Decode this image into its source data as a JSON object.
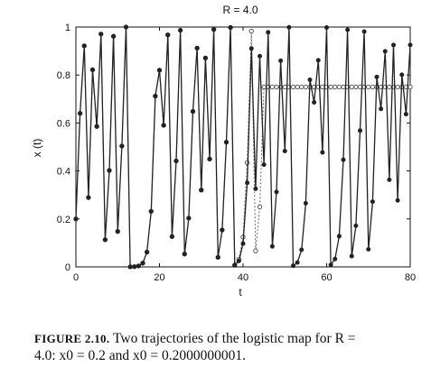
{
  "chart_data": {
    "type": "line",
    "title": "R = 4.0",
    "xlabel": "t",
    "ylabel": "x (t)",
    "xlim": [
      0,
      80
    ],
    "ylim": [
      0,
      1
    ],
    "x_ticks": [
      "0",
      "20",
      "40",
      "60",
      "80"
    ],
    "y_ticks": [
      "0",
      "0.2",
      "0.4",
      "0.6",
      "0.8",
      "1"
    ],
    "R": 4.0,
    "series": [
      {
        "initial_value": 0.2,
        "style": "solid line, filled circle markers",
        "color": "#222222",
        "values": [
          0.2,
          0.64,
          0.9216,
          0.289014,
          0.821939,
          0.585421,
          0.970813,
          0.113339,
          0.401974,
          0.961563,
          0.147837,
          0.503924,
          0.999938,
          0.000246,
          0.000985,
          0.003936,
          0.015682,
          0.061745,
          0.231729,
          0.712124,
          0.820014,
          0.590364,
          0.967337,
          0.126384,
          0.441645,
          0.986379,
          0.053742,
          0.203415,
          0.648149,
          0.912207,
          0.320342,
          0.870893,
          0.449752,
          0.989904,
          0.039977,
          0.153515,
          0.519794,
          0.998433,
          0.006258,
          0.024875,
          0.097025,
          0.350445,
          0.910523,
          0.325889,
          0.878796,
          0.426059,
          0.978162,
          0.085442,
          0.312567,
          0.859483,
          0.483088,
          0.998856,
          0.004573,
          0.018207,
          0.071502,
          0.26556,
          0.78015,
          0.686063,
          0.861514,
          0.477229,
          0.997908,
          0.008349,
          0.033118,
          0.128084,
          0.446715,
          0.988648,
          0.044892,
          0.171506,
          0.56837,
          0.981306,
          0.073378,
          0.271977,
          0.792025,
          0.658895,
          0.899014,
          0.363152,
          0.925097,
          0.277166,
          0.801384,
          0.636702,
          0.925252
        ]
      },
      {
        "initial_value": 0.2000000001,
        "style": "dotted line, open circle markers",
        "color": "#555555",
        "values": [
          0.2,
          0.64,
          0.9216,
          0.289014,
          0.821939,
          0.585421,
          0.970813,
          0.113339,
          0.401974,
          0.961563,
          0.147837,
          0.503924,
          0.999938,
          0.000246,
          0.000985,
          0.003936,
          0.015682,
          0.061745,
          0.231729,
          0.712124,
          0.820014,
          0.590364,
          0.967337,
          0.126384,
          0.441645,
          0.986379,
          0.053742,
          0.203415,
          0.648149,
          0.912207,
          0.320342,
          0.870893,
          0.449752,
          0.989904,
          0.04,
          0.154,
          0.52,
          0.998,
          0.008,
          0.032,
          0.124,
          0.435,
          0.983,
          0.067,
          0.25,
          0.75,
          0.75,
          0.75,
          0.75,
          0.75,
          0.75,
          0.75,
          0.75,
          0.75,
          0.75,
          0.75,
          0.75,
          0.75,
          0.75,
          0.75,
          0.75,
          0.75,
          0.75,
          0.75,
          0.75,
          0.75,
          0.75,
          0.75,
          0.75,
          0.75,
          0.75,
          0.75,
          0.75,
          0.75,
          0.75,
          0.75,
          0.75,
          0.75,
          0.75,
          0.75,
          0.75
        ]
      }
    ]
  },
  "caption": {
    "label": "FIGURE 2.10.",
    "line1": " Two trajectories of the logistic map for R =",
    "line2": "4.0: x0 = 0.2 and x0 = 0.2000000001."
  }
}
